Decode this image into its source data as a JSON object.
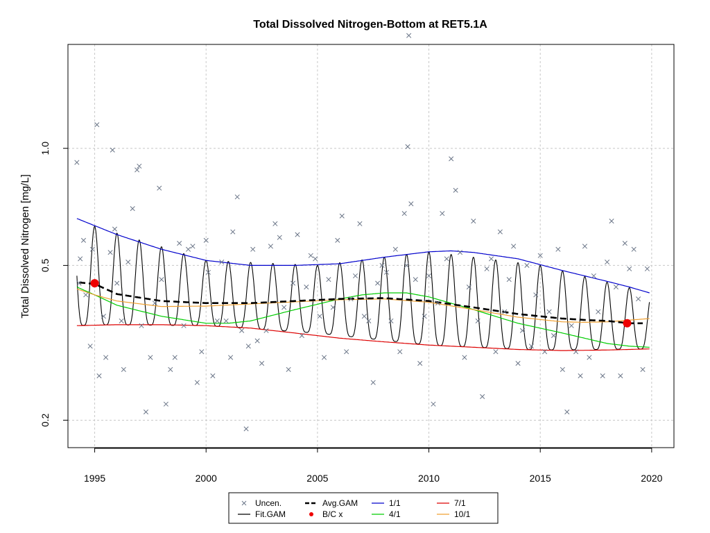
{
  "chart_data": {
    "type": "line",
    "title": "Total Dissolved Nitrogen-Bottom at RET5.1A",
    "ylabel": "Total Dissolved Nitrogen [mg/L]",
    "xlabel": "",
    "y_scale": "log",
    "x_ticks": [
      "1995",
      "2000",
      "2005",
      "2010",
      "2015",
      "2020"
    ],
    "y_ticks": [
      "0.2",
      "0.5",
      "1.0"
    ],
    "xlim": [
      1993.8,
      2021.0
    ],
    "ylim": [
      0.17,
      1.85
    ],
    "grid": true,
    "legend_position": "bottom",
    "legend": [
      {
        "label": "Uncen.",
        "kind": "x-marker",
        "color": "#6a7587"
      },
      {
        "label": "Avg.GAM",
        "kind": "dashed",
        "color": "#000000"
      },
      {
        "label": "1/1",
        "kind": "line",
        "color": "#0000cc"
      },
      {
        "label": "7/1",
        "kind": "line",
        "color": "#dd0000"
      },
      {
        "label": "Fit.GAM",
        "kind": "line",
        "color": "#000000"
      },
      {
        "label": "B/C x",
        "kind": "dot",
        "color": "#ee0000"
      },
      {
        "label": "4/1",
        "kind": "line",
        "color": "#00cc00"
      },
      {
        "label": "10/1",
        "kind": "line",
        "color": "#f0a030"
      }
    ],
    "series": [
      {
        "name": "1/1",
        "color": "#0000cc",
        "x": [
          1994.2,
          1996,
          1998,
          2000,
          2002,
          2004,
          2006,
          2008,
          2010,
          2011,
          2012,
          2014,
          2016,
          2018,
          2019,
          2019.9
        ],
        "values": [
          0.66,
          0.6,
          0.55,
          0.515,
          0.5,
          0.5,
          0.505,
          0.525,
          0.542,
          0.545,
          0.54,
          0.52,
          0.485,
          0.455,
          0.44,
          0.425
        ]
      },
      {
        "name": "4/1",
        "color": "#00cc00",
        "x": [
          1994.2,
          1995,
          1996,
          1998,
          2000,
          2001,
          2002,
          2004,
          2006,
          2007,
          2008,
          2009,
          2010,
          2012,
          2014,
          2016,
          2018,
          2019,
          2019.9
        ],
        "values": [
          0.44,
          0.42,
          0.395,
          0.37,
          0.355,
          0.355,
          0.36,
          0.385,
          0.41,
          0.42,
          0.425,
          0.425,
          0.415,
          0.385,
          0.355,
          0.335,
          0.315,
          0.31,
          0.308
        ]
      },
      {
        "name": "7/1",
        "color": "#dd0000",
        "x": [
          1994.2,
          1996,
          1998,
          2000,
          2002,
          2004,
          2006,
          2008,
          2010,
          2012,
          2014,
          2016,
          2018,
          2019.9
        ],
        "values": [
          0.35,
          0.352,
          0.352,
          0.35,
          0.345,
          0.335,
          0.325,
          0.318,
          0.312,
          0.308,
          0.304,
          0.302,
          0.303,
          0.305
        ]
      },
      {
        "name": "10/1",
        "color": "#f0a030",
        "x": [
          1994.2,
          1995,
          1996,
          1998,
          2000,
          2002,
          2004,
          2006,
          2008,
          2010,
          2012,
          2014,
          2016,
          2017,
          2018,
          2019.9
        ],
        "values": [
          0.435,
          0.42,
          0.405,
          0.392,
          0.393,
          0.398,
          0.403,
          0.408,
          0.41,
          0.402,
          0.385,
          0.368,
          0.358,
          0.357,
          0.358,
          0.365
        ]
      },
      {
        "name": "Avg.GAM",
        "color": "#000000",
        "x": [
          1994.3,
          1995,
          1996,
          1998,
          2000,
          2002,
          2004,
          2006,
          2008,
          2010,
          2012,
          2014,
          2016,
          2017,
          2018,
          2019,
          2019.6
        ],
        "values": [
          0.452,
          0.448,
          0.422,
          0.405,
          0.4,
          0.4,
          0.405,
          0.41,
          0.412,
          0.405,
          0.39,
          0.375,
          0.365,
          0.362,
          0.36,
          0.355,
          0.355
        ]
      },
      {
        "name": "Fit.GAM",
        "color": "#000000",
        "seasonal": "peak about 1 Jan, trough about 1 Jul",
        "x": [
          1994.2,
          1995,
          2000,
          2005,
          2010,
          2015,
          2019.9
        ],
        "upper": [
          0.66,
          0.63,
          0.515,
          0.5,
          0.542,
          0.5,
          0.425
        ],
        "lower": [
          0.35,
          0.352,
          0.35,
          0.335,
          0.312,
          0.303,
          0.305
        ]
      }
    ],
    "bc_points": [
      {
        "x": 1995.0,
        "value": 0.45
      },
      {
        "x": 2018.9,
        "value": 0.355
      }
    ],
    "uncensored_points": {
      "x": [
        1994.2,
        1994.3,
        1994.35,
        1994.5,
        1994.6,
        1994.8,
        1994.9,
        1995.1,
        1995.2,
        1995.4,
        1995.5,
        1995.7,
        1995.8,
        1995.9,
        1996.0,
        1996.2,
        1996.3,
        1996.5,
        1996.7,
        1996.9,
        1997.0,
        1997.1,
        1997.3,
        1997.5,
        1997.7,
        1997.9,
        1998.0,
        1998.2,
        1998.4,
        1998.6,
        1998.8,
        1999.0,
        1999.2,
        1999.4,
        1999.6,
        1999.8,
        2000.0,
        2000.1,
        2000.3,
        2000.5,
        2000.7,
        2000.9,
        2001.1,
        2001.2,
        2001.4,
        2001.6,
        2001.8,
        2001.9,
        2002.1,
        2002.3,
        2002.5,
        2002.7,
        2002.9,
        2003.1,
        2003.3,
        2003.5,
        2003.7,
        2003.9,
        2004.1,
        2004.3,
        2004.5,
        2004.7,
        2004.9,
        2005.1,
        2005.3,
        2005.5,
        2005.7,
        2005.9,
        2006.1,
        2006.3,
        2006.5,
        2006.7,
        2006.9,
        2007.1,
        2007.3,
        2007.5,
        2007.7,
        2007.9,
        2008.1,
        2008.3,
        2008.5,
        2008.7,
        2008.9,
        2009.0,
        2009.05,
        2009.1,
        2009.2,
        2009.4,
        2009.6,
        2009.8,
        2010.0,
        2010.2,
        2010.4,
        2010.6,
        2010.8,
        2011.0,
        2011.2,
        2011.4,
        2011.6,
        2011.8,
        2012.0,
        2012.2,
        2012.4,
        2012.6,
        2012.8,
        2013.0,
        2013.2,
        2013.4,
        2013.6,
        2013.8,
        2014.0,
        2014.2,
        2014.4,
        2014.6,
        2014.8,
        2015.0,
        2015.2,
        2015.4,
        2015.6,
        2015.8,
        2016.0,
        2016.2,
        2016.4,
        2016.6,
        2016.8,
        2017.0,
        2017.2,
        2017.4,
        2017.6,
        2017.8,
        2018.0,
        2018.2,
        2018.4,
        2018.6,
        2018.8,
        2019.0,
        2019.2,
        2019.4,
        2019.6,
        2019.8
      ],
      "values": [
        0.92,
        0.45,
        0.52,
        0.58,
        0.42,
        0.31,
        0.55,
        1.15,
        0.26,
        0.37,
        0.29,
        0.54,
        0.99,
        0.62,
        0.45,
        0.36,
        0.27,
        0.51,
        0.7,
        0.88,
        0.9,
        0.35,
        0.21,
        0.29,
        0.4,
        0.79,
        0.46,
        0.22,
        0.27,
        0.29,
        0.57,
        0.35,
        0.55,
        0.56,
        0.25,
        0.3,
        0.58,
        0.48,
        0.26,
        0.36,
        0.51,
        0.36,
        0.29,
        0.61,
        0.75,
        0.34,
        0.19,
        0.31,
        0.55,
        0.32,
        0.28,
        0.34,
        0.56,
        0.64,
        0.59,
        0.39,
        0.27,
        0.45,
        0.6,
        0.33,
        0.44,
        0.53,
        0.52,
        0.37,
        0.29,
        0.46,
        0.39,
        0.58,
        0.67,
        0.3,
        0.41,
        0.47,
        0.64,
        0.37,
        0.36,
        0.25,
        0.45,
        0.5,
        0.48,
        0.36,
        0.55,
        0.3,
        0.68,
        0.5,
        1.01,
        1.95,
        0.72,
        0.46,
        0.28,
        0.37,
        0.47,
        0.22,
        0.4,
        0.68,
        0.52,
        0.94,
        0.78,
        0.54,
        0.29,
        0.44,
        0.65,
        0.36,
        0.23,
        0.49,
        0.52,
        0.3,
        0.61,
        0.38,
        0.46,
        0.56,
        0.28,
        0.34,
        0.5,
        0.31,
        0.42,
        0.53,
        0.3,
        0.38,
        0.33,
        0.55,
        0.27,
        0.21,
        0.35,
        0.3,
        0.26,
        0.56,
        0.29,
        0.47,
        0.38,
        0.26,
        0.51,
        0.65,
        0.44,
        0.26,
        0.57,
        0.49,
        0.55,
        0.41,
        0.27,
        0.49
      ]
    }
  }
}
